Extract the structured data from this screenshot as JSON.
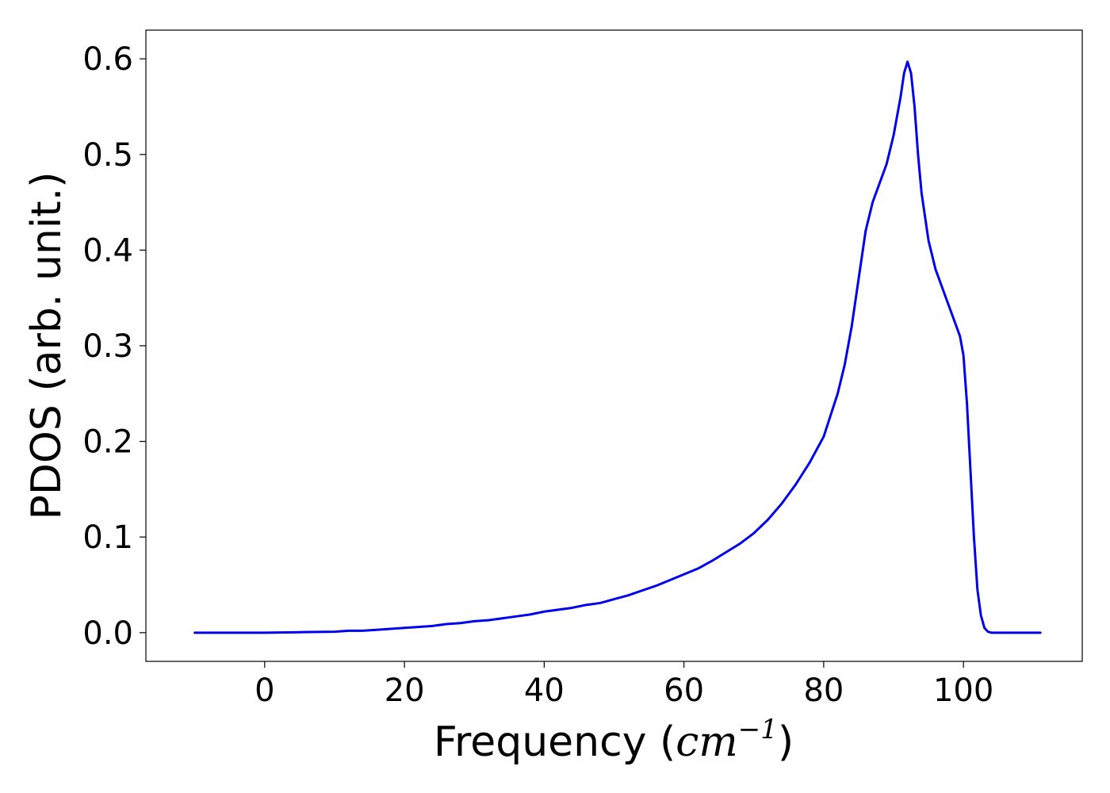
{
  "chart_data": {
    "type": "line",
    "title": "",
    "xlabel_prefix": "Frequency (",
    "xlabel_math": "cm",
    "xlabel_sup": "−1",
    "xlabel_suffix": ")",
    "ylabel": "PDOS (arb. unit.)",
    "xlim": [
      -17,
      117
    ],
    "ylim": [
      -0.03,
      0.63
    ],
    "xticks": [
      0,
      20,
      40,
      60,
      80,
      100
    ],
    "xtick_labels": [
      "0",
      "20",
      "40",
      "60",
      "80",
      "100"
    ],
    "yticks": [
      0.0,
      0.1,
      0.2,
      0.3,
      0.4,
      0.5,
      0.6
    ],
    "ytick_labels": [
      "0.0",
      "0.1",
      "0.2",
      "0.3",
      "0.4",
      "0.5",
      "0.6"
    ],
    "grid": false,
    "line_color": "#0000ee",
    "series": [
      {
        "x": [
          -10,
          -5,
          0,
          5,
          10,
          12,
          14,
          16,
          18,
          20,
          22,
          24,
          26,
          28,
          30,
          32,
          34,
          36,
          38,
          40,
          42,
          44,
          46,
          48,
          50,
          52,
          54,
          56,
          58,
          60,
          62,
          64,
          66,
          68,
          70,
          72,
          74,
          76,
          78,
          80,
          82,
          83,
          84,
          85,
          86,
          87,
          88,
          89,
          90,
          90.5,
          91,
          91.5,
          92,
          92.5,
          93,
          93.5,
          94,
          95,
          96,
          97,
          98,
          99,
          99.5,
          100,
          100.5,
          101,
          101.5,
          102,
          102.5,
          103,
          103.5,
          104,
          105,
          106,
          108,
          111
        ],
        "y": [
          0.0,
          0.0,
          0.0,
          0.0005,
          0.001,
          0.002,
          0.002,
          0.003,
          0.004,
          0.005,
          0.006,
          0.007,
          0.009,
          0.01,
          0.012,
          0.013,
          0.015,
          0.017,
          0.019,
          0.022,
          0.024,
          0.026,
          0.029,
          0.031,
          0.035,
          0.039,
          0.044,
          0.049,
          0.055,
          0.061,
          0.067,
          0.075,
          0.084,
          0.093,
          0.104,
          0.118,
          0.135,
          0.155,
          0.178,
          0.205,
          0.25,
          0.28,
          0.32,
          0.37,
          0.42,
          0.45,
          0.47,
          0.49,
          0.52,
          0.54,
          0.56,
          0.585,
          0.597,
          0.585,
          0.55,
          0.5,
          0.46,
          0.41,
          0.38,
          0.36,
          0.34,
          0.32,
          0.31,
          0.29,
          0.24,
          0.17,
          0.1,
          0.045,
          0.018,
          0.005,
          0.001,
          0.0,
          0.0,
          0.0,
          0.0,
          0.0
        ]
      }
    ]
  }
}
